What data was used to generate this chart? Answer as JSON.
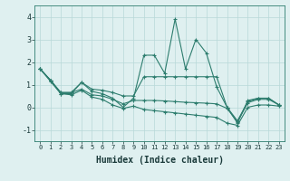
{
  "x": [
    0,
    1,
    2,
    3,
    4,
    5,
    6,
    7,
    8,
    9,
    10,
    11,
    12,
    13,
    14,
    15,
    16,
    17,
    18,
    19,
    20,
    21,
    22,
    23
  ],
  "line1": [
    1.7,
    1.2,
    0.6,
    0.6,
    1.1,
    0.7,
    0.6,
    0.4,
    0.0,
    0.4,
    2.3,
    2.3,
    1.5,
    3.9,
    1.7,
    3.0,
    2.4,
    0.9,
    0.0,
    -0.7,
    0.3,
    0.4,
    0.4,
    0.1
  ],
  "line2": [
    1.7,
    1.2,
    0.65,
    0.65,
    1.1,
    0.8,
    0.75,
    0.65,
    0.5,
    0.5,
    1.35,
    1.35,
    1.35,
    1.35,
    1.35,
    1.35,
    1.35,
    1.35,
    0.0,
    -0.6,
    0.25,
    0.4,
    0.4,
    0.1
  ],
  "line3": [
    1.7,
    1.2,
    0.65,
    0.65,
    0.8,
    0.55,
    0.5,
    0.35,
    0.15,
    0.3,
    0.3,
    0.3,
    0.28,
    0.25,
    0.22,
    0.2,
    0.18,
    0.15,
    -0.05,
    -0.65,
    0.2,
    0.35,
    0.35,
    0.1
  ],
  "line4": [
    1.7,
    1.15,
    0.6,
    0.55,
    0.75,
    0.45,
    0.35,
    0.1,
    -0.05,
    0.05,
    -0.1,
    -0.15,
    -0.2,
    -0.25,
    -0.3,
    -0.35,
    -0.4,
    -0.45,
    -0.7,
    -0.8,
    0.0,
    0.1,
    0.1,
    0.05
  ],
  "line_color": "#2d7d6e",
  "bg_color": "#dff0f0",
  "grid_color_major": "#b8d8d8",
  "grid_color_minor": "#cce8e8",
  "xlabel": "Humidex (Indice chaleur)",
  "ylim": [
    -1.5,
    4.5
  ],
  "xlim": [
    -0.5,
    23.5
  ],
  "yticks": [
    -1,
    0,
    1,
    2,
    3,
    4
  ],
  "xticks": [
    0,
    1,
    2,
    3,
    4,
    5,
    6,
    7,
    8,
    9,
    10,
    11,
    12,
    13,
    14,
    15,
    16,
    17,
    18,
    19,
    20,
    21,
    22,
    23
  ]
}
